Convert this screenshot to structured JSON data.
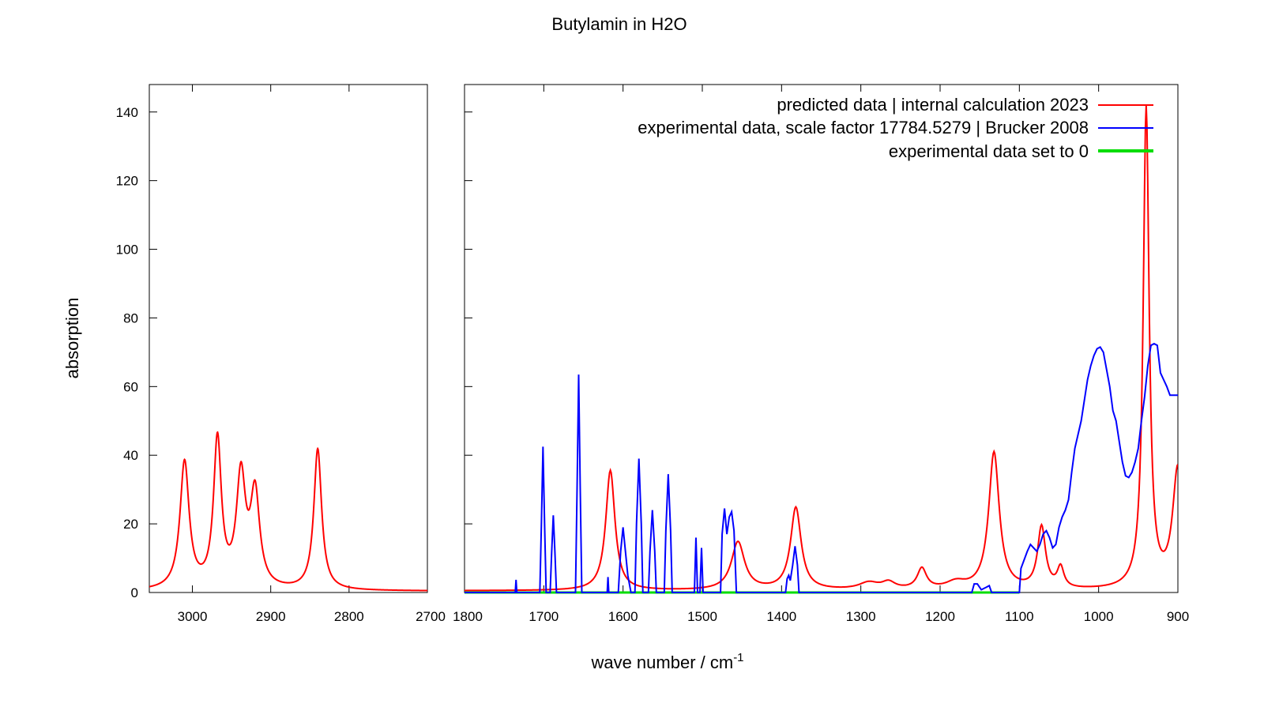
{
  "chart_data": {
    "type": "line",
    "title": "Butylamin in H2O",
    "xlabel": "wave number / cm",
    "xlabel_sup": "-1",
    "ylabel": "absorption",
    "ylim": [
      0,
      148
    ],
    "yticks": [
      0,
      20,
      40,
      60,
      80,
      100,
      120,
      140
    ],
    "grid": false,
    "legend_position": "top-right",
    "panels": [
      {
        "xlim": [
          3055,
          2700
        ],
        "xticks": [
          3000,
          2900,
          2800,
          2700
        ]
      },
      {
        "xlim": [
          1800,
          900
        ],
        "xticks": [
          1800,
          1700,
          1600,
          1500,
          1400,
          1300,
          1200,
          1100,
          1000,
          900
        ]
      }
    ],
    "series": [
      {
        "name": "predicted data | internal calculation 2023",
        "color": "#ff0000",
        "peaks_high": [
          [
            3010,
            37,
            7
          ],
          [
            2968,
            43,
            6
          ],
          [
            2938,
            32,
            7
          ],
          [
            2920,
            27,
            7
          ],
          [
            2840,
            41,
            6
          ]
        ],
        "baseline_high": 0.4,
        "peaks_low": [
          [
            1616,
            35,
            7
          ],
          [
            1455,
            14,
            10
          ],
          [
            1382,
            24,
            8
          ],
          [
            1290,
            2,
            15
          ],
          [
            1265,
            2,
            10
          ],
          [
            1223,
            6,
            7
          ],
          [
            1180,
            2,
            15
          ],
          [
            1132,
            40,
            8
          ],
          [
            1072,
            18,
            6
          ],
          [
            1048,
            6,
            5
          ],
          [
            940,
            140,
            4.5
          ],
          [
            900,
            35,
            8
          ]
        ],
        "baseline_low": 0.5
      },
      {
        "name": "experimental data, scale factor 17784.5279 | Brucker 2008",
        "color": "#0000ff",
        "points_low": [
          [
            1800,
            0
          ],
          [
            1736,
            0
          ],
          [
            1735,
            3.7
          ],
          [
            1734,
            0
          ],
          [
            1705,
            0
          ],
          [
            1703,
            20
          ],
          [
            1701,
            42.5
          ],
          [
            1699,
            20
          ],
          [
            1697,
            0
          ],
          [
            1692,
            0
          ],
          [
            1690,
            12
          ],
          [
            1688,
            22.5
          ],
          [
            1686,
            12
          ],
          [
            1684,
            0
          ],
          [
            1660,
            0
          ],
          [
            1658,
            30
          ],
          [
            1656,
            63.5
          ],
          [
            1654,
            30
          ],
          [
            1652,
            0
          ],
          [
            1620,
            0
          ],
          [
            1619,
            4.5
          ],
          [
            1618,
            0
          ],
          [
            1606,
            0
          ],
          [
            1603,
            12
          ],
          [
            1600,
            19
          ],
          [
            1597,
            12
          ],
          [
            1594,
            5
          ],
          [
            1590,
            0
          ],
          [
            1585,
            0
          ],
          [
            1583,
            20
          ],
          [
            1580,
            39
          ],
          [
            1577,
            20
          ],
          [
            1575,
            0
          ],
          [
            1568,
            0
          ],
          [
            1566,
            12
          ],
          [
            1563,
            24
          ],
          [
            1560,
            12
          ],
          [
            1558,
            0
          ],
          [
            1548,
            0
          ],
          [
            1546,
            18
          ],
          [
            1543,
            34.5
          ],
          [
            1540,
            18
          ],
          [
            1538,
            0
          ],
          [
            1510,
            0
          ],
          [
            1508,
            16
          ],
          [
            1506,
            0
          ],
          [
            1503,
            0
          ],
          [
            1501,
            13
          ],
          [
            1499,
            0
          ],
          [
            1477,
            0
          ],
          [
            1475,
            17
          ],
          [
            1472,
            24.5
          ],
          [
            1469,
            17
          ],
          [
            1466,
            22
          ],
          [
            1463,
            23.5
          ],
          [
            1460,
            18
          ],
          [
            1457,
            0
          ],
          [
            1395,
            0
          ],
          [
            1393,
            4
          ],
          [
            1391,
            5
          ],
          [
            1389,
            3.5
          ],
          [
            1386,
            8
          ],
          [
            1383,
            13.5
          ],
          [
            1380,
            8
          ],
          [
            1378,
            0
          ],
          [
            1160,
            0
          ],
          [
            1157,
            2.5
          ],
          [
            1153,
            2.5
          ],
          [
            1148,
            0.8
          ],
          [
            1142,
            1.5
          ],
          [
            1138,
            2
          ],
          [
            1135,
            0
          ],
          [
            1100,
            0
          ],
          [
            1098,
            7
          ],
          [
            1094,
            9.5
          ],
          [
            1090,
            12
          ],
          [
            1086,
            14
          ],
          [
            1082,
            13
          ],
          [
            1078,
            12
          ],
          [
            1074,
            14
          ],
          [
            1070,
            17
          ],
          [
            1066,
            18
          ],
          [
            1062,
            16
          ],
          [
            1058,
            13
          ],
          [
            1054,
            14
          ],
          [
            1050,
            19
          ],
          [
            1046,
            22
          ],
          [
            1042,
            24
          ],
          [
            1038,
            27
          ],
          [
            1034,
            35
          ],
          [
            1030,
            42
          ],
          [
            1026,
            46
          ],
          [
            1022,
            50
          ],
          [
            1018,
            56
          ],
          [
            1014,
            62
          ],
          [
            1010,
            66
          ],
          [
            1006,
            69
          ],
          [
            1002,
            71
          ],
          [
            998,
            71.5
          ],
          [
            994,
            70
          ],
          [
            990,
            65
          ],
          [
            986,
            60
          ],
          [
            982,
            53
          ],
          [
            978,
            50
          ],
          [
            974,
            44
          ],
          [
            970,
            38
          ],
          [
            966,
            34
          ],
          [
            962,
            33.5
          ],
          [
            958,
            35
          ],
          [
            954,
            38
          ],
          [
            950,
            42
          ],
          [
            946,
            50
          ],
          [
            942,
            57
          ],
          [
            938,
            66
          ],
          [
            934,
            72
          ],
          [
            930,
            72.5
          ],
          [
            926,
            72
          ],
          [
            922,
            64
          ],
          [
            918,
            62
          ],
          [
            914,
            60
          ],
          [
            910,
            57.5
          ],
          [
            900,
            57.5
          ]
        ]
      },
      {
        "name": "experimental data set to 0",
        "color": "#00dd00",
        "value": 0
      }
    ]
  }
}
